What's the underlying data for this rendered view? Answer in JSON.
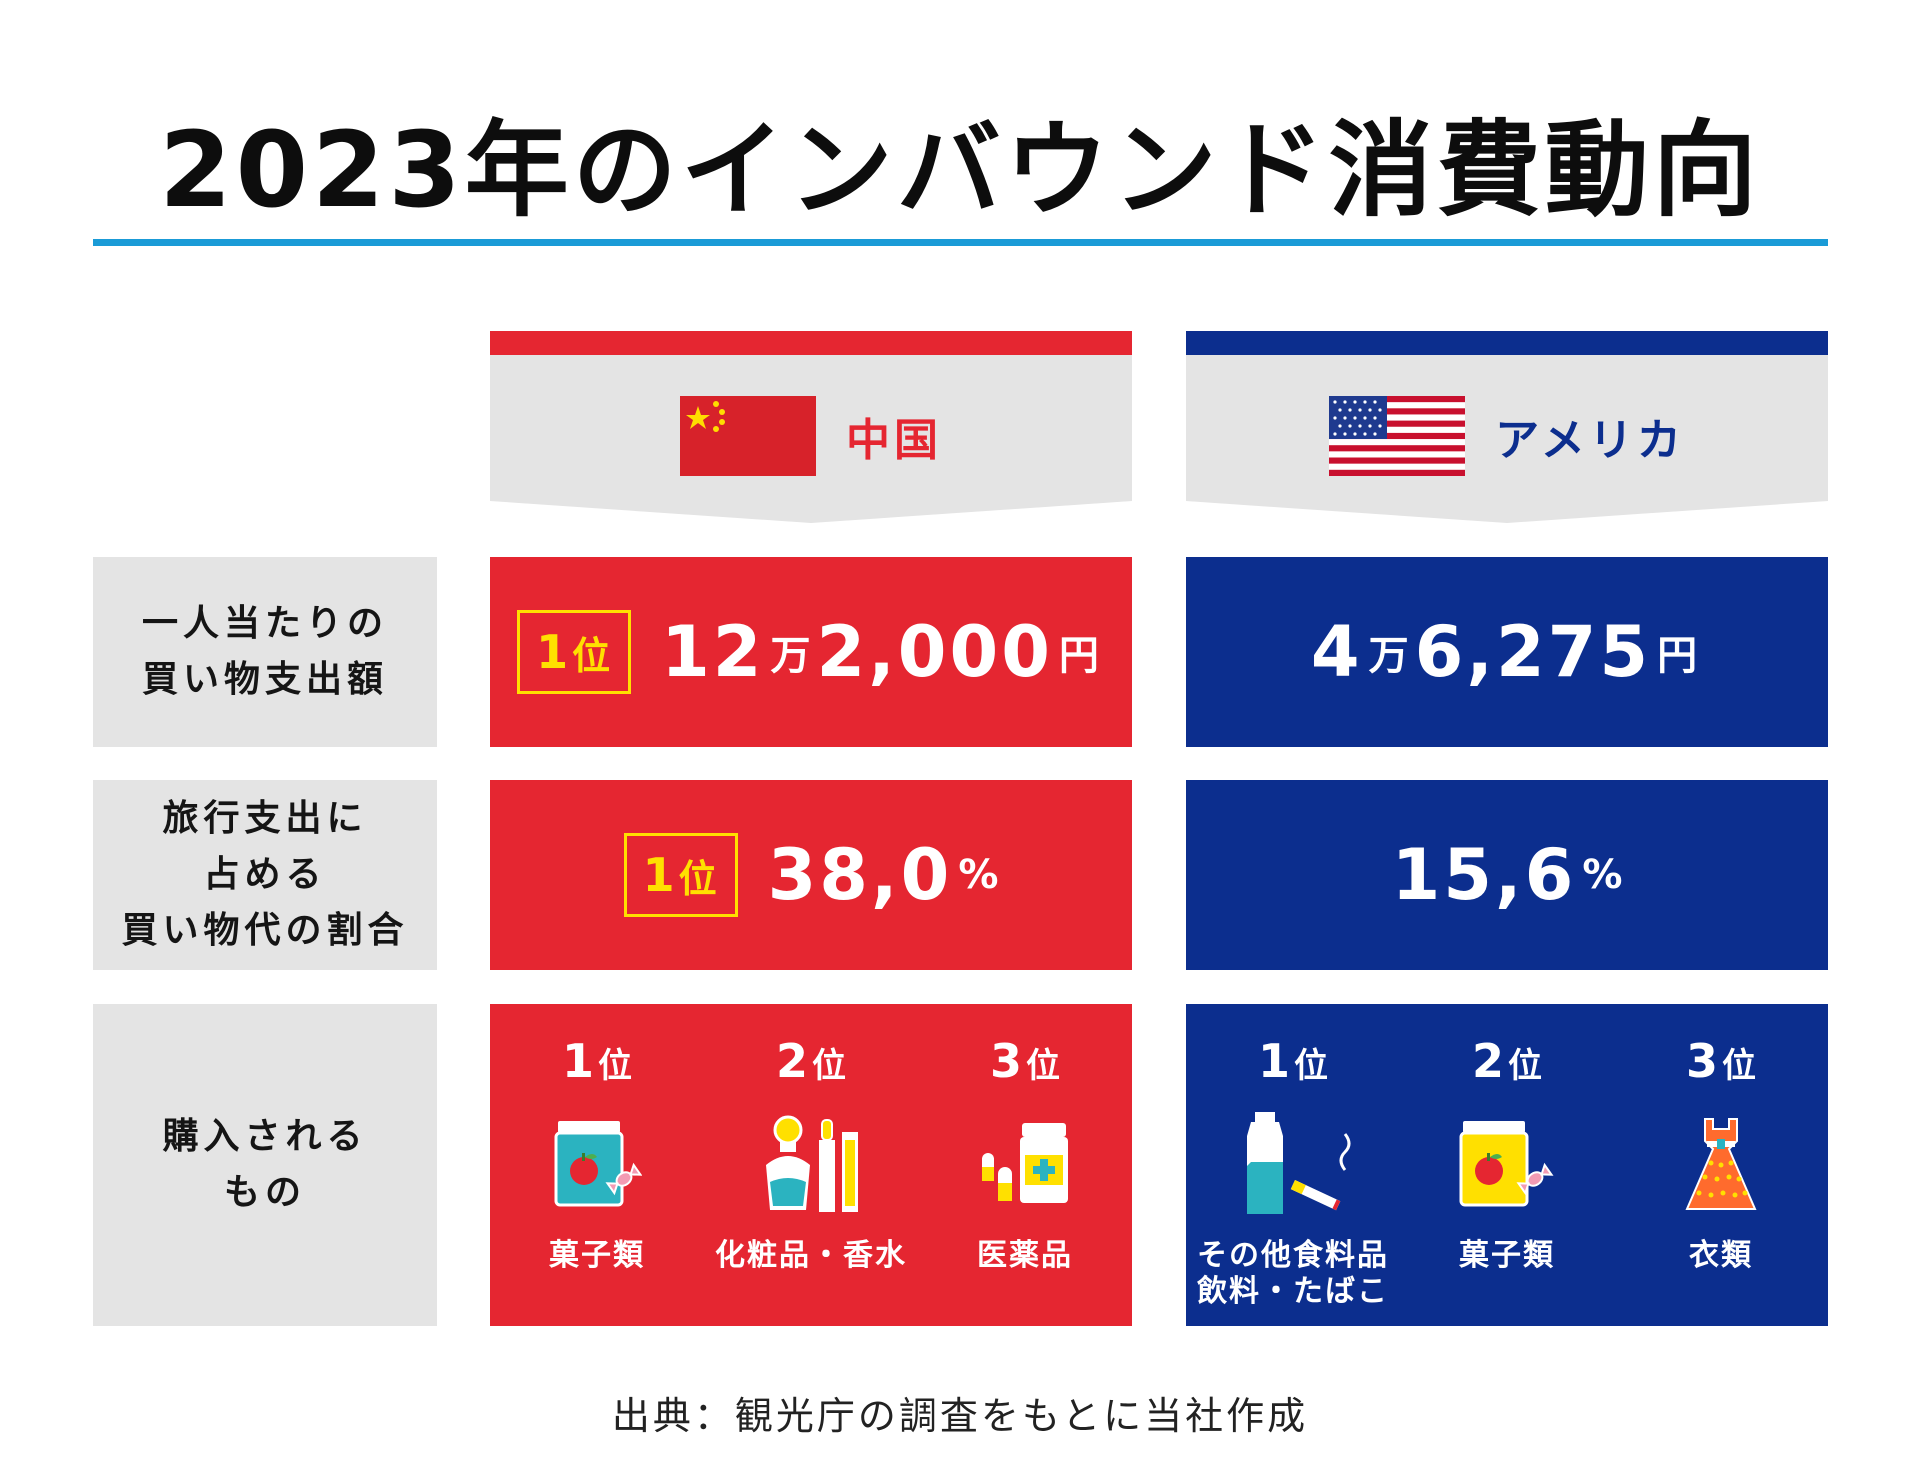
{
  "title": "2023年のインバウンド消費動向",
  "countries": [
    {
      "name": "中国",
      "flag_icon": "china-flag-icon",
      "color": "#e52631",
      "name_color": "#e52631"
    },
    {
      "name": "アメリカ",
      "flag_icon": "usa-flag-icon",
      "color": "#0c2e8e",
      "name_color": "#0c2e8e"
    }
  ],
  "rows": {
    "spend_per_person": {
      "label": "一人当たりの\n買い物支出額"
    },
    "shopping_share": {
      "label": "旅行支出に\n占める\n買い物代の割合"
    },
    "purchased_items": {
      "label": "購入される\nもの"
    }
  },
  "rank_suffix": "位",
  "china": {
    "spend": {
      "rank": "1",
      "man": "12",
      "man_unit": "万",
      "rest": "2,000",
      "yen": "円"
    },
    "share": {
      "rank": "1",
      "value": "38,0",
      "pct": "%"
    },
    "items": [
      {
        "rank": "1",
        "name": "菓子類",
        "icon": "snack-jar-icon"
      },
      {
        "rank": "2",
        "name": "化粧品・香水",
        "icon": "cosmetics-perfume-icon"
      },
      {
        "rank": "3",
        "name": "医薬品",
        "icon": "medicine-icon"
      }
    ]
  },
  "usa": {
    "spend": {
      "man": "4",
      "man_unit": "万",
      "rest": "6,275",
      "yen": "円"
    },
    "share": {
      "value": "15,6",
      "pct": "%"
    },
    "items": [
      {
        "rank": "1",
        "name": "その他食料品\n飲料・たばこ",
        "icon": "bottle-cigarette-icon"
      },
      {
        "rank": "2",
        "name": "菓子類",
        "icon": "snack-jar-icon"
      },
      {
        "rank": "3",
        "name": "衣類",
        "icon": "dress-icon"
      }
    ]
  },
  "chart_data": {
    "type": "table",
    "title": "2023年のインバウンド消費動向",
    "columns": [
      "中国",
      "アメリカ"
    ],
    "rows": [
      {
        "label": "一人当たりの買い物支出額",
        "values": [
          "12万2,000円",
          "4万6,275円"
        ],
        "china_rank": "1位"
      },
      {
        "label": "旅行支出に占める買い物代の割合",
        "values": [
          "38,0%",
          "15,6%"
        ],
        "china_rank": "1位"
      },
      {
        "label": "購入されるもの",
        "values": [
          [
            "菓子類",
            "化粧品・香水",
            "医薬品"
          ],
          [
            "その他食料品 飲料・たばこ",
            "菓子類",
            "衣類"
          ]
        ]
      }
    ]
  },
  "source": "出典：観光庁の調査をもとに当社作成"
}
